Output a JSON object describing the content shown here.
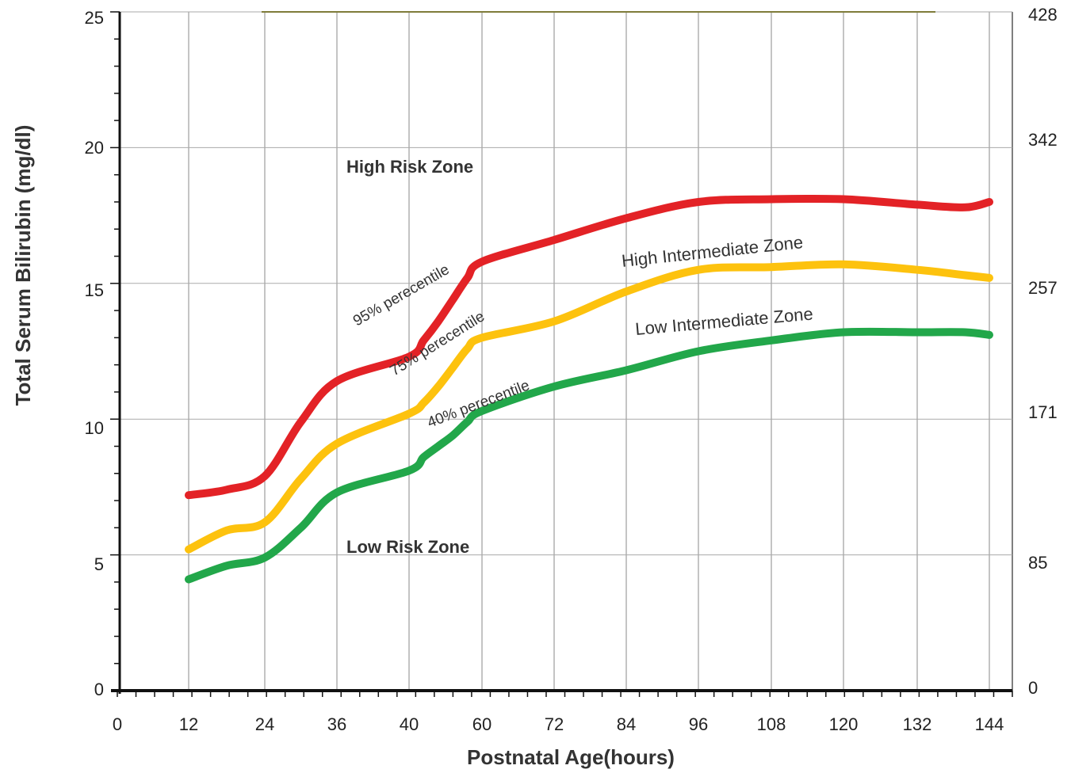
{
  "chart_data": {
    "type": "line",
    "xlabel": "Postnatal Age(hours)",
    "ylabel": "Total Serum Bilirubin (mg/dl)",
    "ylim": [
      0,
      25
    ],
    "y2_ticks": [
      "0",
      "85",
      "171",
      "257",
      "342",
      "428"
    ],
    "x_ticks": [
      "0",
      "12",
      "24",
      "36",
      "40",
      "60",
      "72",
      "84",
      "96",
      "108",
      "120",
      "132",
      "144"
    ],
    "y_ticks": [
      "0",
      "5",
      "10",
      "15",
      "20",
      "25"
    ],
    "grid": true,
    "series": [
      {
        "name": "95% perecentile",
        "color": "#e32226",
        "x": [
          12,
          18,
          24,
          30,
          36,
          40,
          44,
          48,
          52,
          56,
          60,
          72,
          84,
          96,
          108,
          120,
          132,
          140,
          144
        ],
        "y": [
          7.2,
          7.4,
          7.9,
          9.9,
          11.4,
          12.3,
          12.9,
          13.6,
          14.4,
          15.2,
          15.8,
          16.6,
          17.4,
          18.0,
          18.1,
          18.1,
          17.9,
          17.8,
          18.0
        ]
      },
      {
        "name": "75% perecentile",
        "color": "#fdc20e",
        "x": [
          12,
          18,
          24,
          30,
          36,
          40,
          44,
          48,
          52,
          56,
          60,
          72,
          84,
          96,
          108,
          120,
          132,
          140,
          144
        ],
        "y": [
          5.2,
          5.9,
          6.2,
          7.8,
          9.1,
          10.2,
          10.6,
          11.2,
          11.9,
          12.6,
          13.0,
          13.6,
          14.7,
          15.5,
          15.6,
          15.7,
          15.5,
          15.3,
          15.2
        ]
      },
      {
        "name": "40% perecentile",
        "color": "#22a74a",
        "x": [
          12,
          18,
          24,
          30,
          36,
          40,
          44,
          48,
          52,
          56,
          60,
          72,
          84,
          96,
          108,
          120,
          132,
          140,
          144
        ],
        "y": [
          4.1,
          4.6,
          4.9,
          6.0,
          7.3,
          8.1,
          8.6,
          9.0,
          9.4,
          9.9,
          10.3,
          11.2,
          11.8,
          12.5,
          12.9,
          13.2,
          13.2,
          13.2,
          13.1
        ]
      }
    ],
    "zones": {
      "high_risk": "High Risk Zone",
      "high_intermediate": "High Intermediate Zone",
      "low_intermediate": "Low Intermediate Zone",
      "low_risk": "Low Risk Zone"
    }
  }
}
